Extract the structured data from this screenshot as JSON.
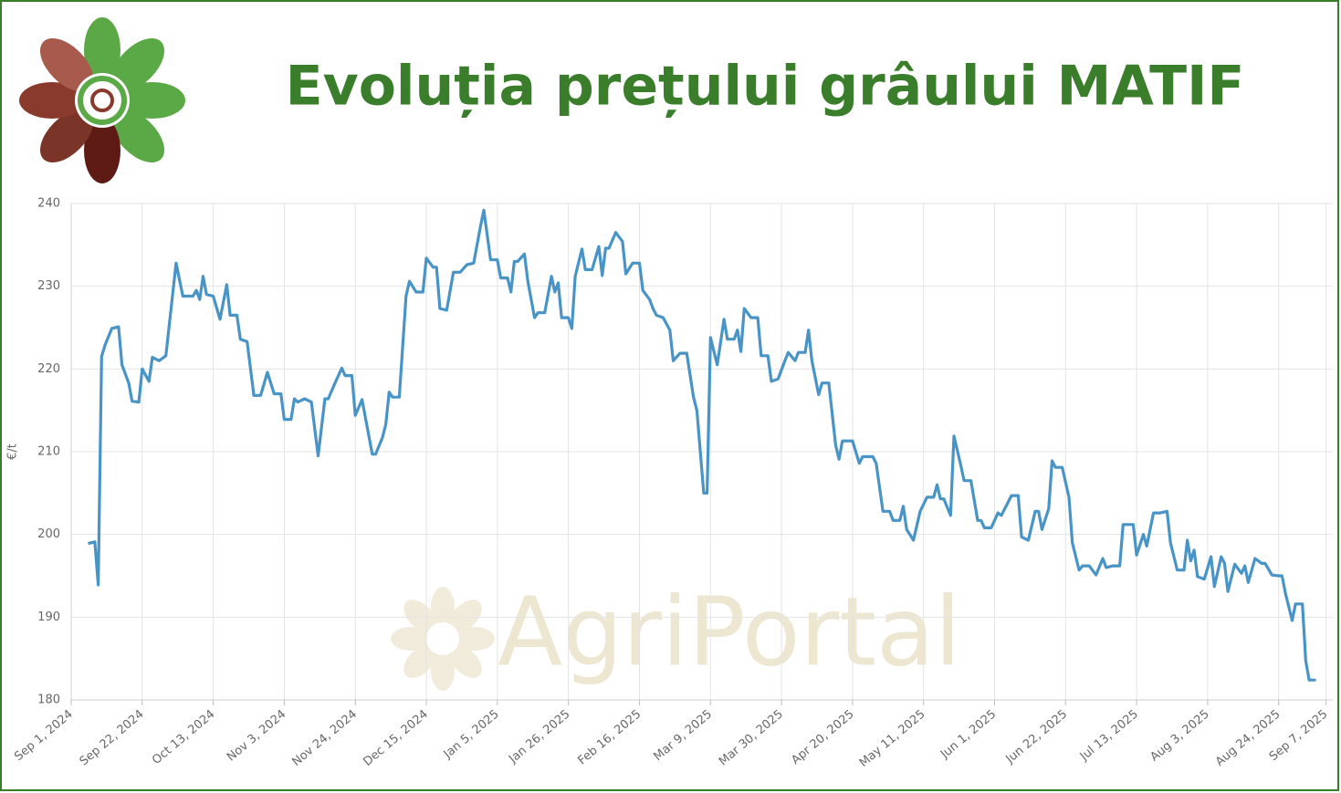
{
  "chart_data": {
    "type": "line",
    "title": "Evoluția prețului grâului MATIF",
    "watermark": "AgriPortal",
    "y_label": "€/t",
    "ylim": [
      180,
      240
    ],
    "yticks": [
      180,
      190,
      200,
      210,
      220,
      230,
      240
    ],
    "xlim": [
      "2024-09-01",
      "2025-09-09"
    ],
    "xticks": [
      {
        "value": "2024-09-01",
        "label": "Sep 1, 2024"
      },
      {
        "value": "2024-09-22",
        "label": "Sep 22, 2024"
      },
      {
        "value": "2024-10-13",
        "label": "Oct 13, 2024"
      },
      {
        "value": "2024-11-03",
        "label": "Nov 3, 2024"
      },
      {
        "value": "2024-11-24",
        "label": "Nov 24, 2024"
      },
      {
        "value": "2024-12-15",
        "label": "Dec 15, 2024"
      },
      {
        "value": "2025-01-05",
        "label": "Jan 5, 2025"
      },
      {
        "value": "2025-01-26",
        "label": "Jan 26, 2025"
      },
      {
        "value": "2025-02-16",
        "label": "Feb 16, 2025"
      },
      {
        "value": "2025-03-09",
        "label": "Mar 9, 2025"
      },
      {
        "value": "2025-03-30",
        "label": "Mar 30, 2025"
      },
      {
        "value": "2025-04-20",
        "label": "Apr 20, 2025"
      },
      {
        "value": "2025-05-11",
        "label": "May 11, 2025"
      },
      {
        "value": "2025-06-01",
        "label": "Jun 1, 2025"
      },
      {
        "value": "2025-06-22",
        "label": "Jun 22, 2025"
      },
      {
        "value": "2025-07-13",
        "label": "Jul 13, 2025"
      },
      {
        "value": "2025-08-03",
        "label": "Aug 3, 2025"
      },
      {
        "value": "2025-08-24",
        "label": "Aug 24, 2025"
      },
      {
        "value": "2025-09-07",
        "label": "Sep 7, 2025"
      }
    ],
    "grid": true,
    "color": "#4894c6",
    "x": [
      "2024-09-06",
      "2024-09-08",
      "2024-09-09",
      "2024-09-10",
      "2024-09-11",
      "2024-09-13",
      "2024-09-15",
      "2024-09-16",
      "2024-09-18",
      "2024-09-19",
      "2024-09-21",
      "2024-09-22",
      "2024-09-24",
      "2024-09-25",
      "2024-09-27",
      "2024-09-29",
      "2024-10-02",
      "2024-10-04",
      "2024-10-07",
      "2024-10-08",
      "2024-10-09",
      "2024-10-10",
      "2024-10-11",
      "2024-10-13",
      "2024-10-15",
      "2024-10-17",
      "2024-10-18",
      "2024-10-20",
      "2024-10-21",
      "2024-10-23",
      "2024-10-25",
      "2024-10-27",
      "2024-10-29",
      "2024-10-31",
      "2024-11-02",
      "2024-11-03",
      "2024-11-05",
      "2024-11-06",
      "2024-11-07",
      "2024-11-09",
      "2024-11-11",
      "2024-11-13",
      "2024-11-15",
      "2024-11-16",
      "2024-11-18",
      "2024-11-20",
      "2024-11-21",
      "2024-11-23",
      "2024-11-24",
      "2024-11-26",
      "2024-11-29",
      "2024-11-30",
      "2024-12-02",
      "2024-12-03",
      "2024-12-04",
      "2024-12-05",
      "2024-12-07",
      "2024-12-09",
      "2024-12-10",
      "2024-12-12",
      "2024-12-14",
      "2024-12-15",
      "2024-12-17",
      "2024-12-18",
      "2024-12-19",
      "2024-12-21",
      "2024-12-23",
      "2024-12-25",
      "2024-12-27",
      "2024-12-29",
      "2024-12-31",
      "2025-01-01",
      "2025-01-03",
      "2025-01-05",
      "2025-01-06",
      "2025-01-08",
      "2025-01-09",
      "2025-01-10",
      "2025-01-11",
      "2025-01-13",
      "2025-01-14",
      "2025-01-16",
      "2025-01-17",
      "2025-01-19",
      "2025-01-21",
      "2025-01-22",
      "2025-01-23",
      "2025-01-24",
      "2025-01-26",
      "2025-01-27",
      "2025-01-28",
      "2025-01-30",
      "2025-01-31",
      "2025-02-02",
      "2025-02-04",
      "2025-02-05",
      "2025-02-06",
      "2025-02-07",
      "2025-02-09",
      "2025-02-11",
      "2025-02-12",
      "2025-02-14",
      "2025-02-16",
      "2025-02-17",
      "2025-02-19",
      "2025-02-20",
      "2025-02-21",
      "2025-02-23",
      "2025-02-25",
      "2025-02-26",
      "2025-02-28",
      "2025-03-02",
      "2025-03-04",
      "2025-03-05",
      "2025-03-07",
      "2025-03-08",
      "2025-03-09",
      "2025-03-11",
      "2025-03-13",
      "2025-03-14",
      "2025-03-16",
      "2025-03-17",
      "2025-03-18",
      "2025-03-19",
      "2025-03-21",
      "2025-03-23",
      "2025-03-24",
      "2025-03-26",
      "2025-03-27",
      "2025-03-29",
      "2025-03-31",
      "2025-04-01",
      "2025-04-03",
      "2025-04-04",
      "2025-04-06",
      "2025-04-07",
      "2025-04-08",
      "2025-04-10",
      "2025-04-11",
      "2025-04-13",
      "2025-04-15",
      "2025-04-16",
      "2025-04-17",
      "2025-04-20",
      "2025-04-22",
      "2025-04-23",
      "2025-04-26",
      "2025-04-27",
      "2025-04-29",
      "2025-05-01",
      "2025-05-02",
      "2025-05-04",
      "2025-05-05",
      "2025-05-06",
      "2025-05-08",
      "2025-05-10",
      "2025-05-12",
      "2025-05-14",
      "2025-05-15",
      "2025-05-16",
      "2025-05-17",
      "2025-05-19",
      "2025-05-20",
      "2025-05-22",
      "2025-05-23",
      "2025-05-25",
      "2025-05-27",
      "2025-05-28",
      "2025-05-29",
      "2025-05-31",
      "2025-06-02",
      "2025-06-03",
      "2025-06-04",
      "2025-06-06",
      "2025-06-08",
      "2025-06-09",
      "2025-06-11",
      "2025-06-13",
      "2025-06-14",
      "2025-06-15",
      "2025-06-17",
      "2025-06-18",
      "2025-06-19",
      "2025-06-21",
      "2025-06-23",
      "2025-06-24",
      "2025-06-26",
      "2025-06-27",
      "2025-06-29",
      "2025-07-01",
      "2025-07-03",
      "2025-07-04",
      "2025-07-06",
      "2025-07-08",
      "2025-07-09",
      "2025-07-12",
      "2025-07-13",
      "2025-07-15",
      "2025-07-16",
      "2025-07-18",
      "2025-07-20",
      "2025-07-22",
      "2025-07-23",
      "2025-07-25",
      "2025-07-27",
      "2025-07-28",
      "2025-07-29",
      "2025-07-30",
      "2025-07-31",
      "2025-08-02",
      "2025-08-04",
      "2025-08-05",
      "2025-08-07",
      "2025-08-08",
      "2025-08-09",
      "2025-08-11",
      "2025-08-13",
      "2025-08-14",
      "2025-08-15",
      "2025-08-17",
      "2025-08-19",
      "2025-08-20",
      "2025-08-22",
      "2025-08-24",
      "2025-08-25",
      "2025-08-26",
      "2025-08-28",
      "2025-08-29",
      "2025-08-31",
      "2025-09-01",
      "2025-09-02",
      "2025-09-04"
    ],
    "values": [
      198.9,
      199.1,
      193.9,
      221.5,
      222.9,
      224.9,
      225.1,
      220.5,
      218.3,
      216.1,
      216,
      220,
      218.5,
      221.4,
      221,
      221.6,
      232.8,
      228.8,
      228.8,
      229.5,
      228.4,
      231.2,
      229,
      228.8,
      226,
      230.2,
      226.5,
      226.5,
      223.6,
      223.3,
      216.8,
      216.8,
      219.6,
      217,
      217,
      213.9,
      213.9,
      216.4,
      216,
      216.4,
      216,
      209.5,
      216.4,
      216.4,
      218.3,
      220.1,
      219.2,
      219.2,
      214.4,
      216.3,
      209.7,
      209.7,
      211.7,
      213.3,
      217.2,
      216.6,
      216.6,
      228.8,
      230.6,
      229.3,
      229.3,
      233.4,
      232.3,
      232.3,
      227.3,
      227.1,
      231.7,
      231.7,
      232.6,
      232.8,
      237.2,
      239.2,
      233.2,
      233.2,
      231,
      231,
      229.3,
      233,
      233,
      233.9,
      230.6,
      226.2,
      226.8,
      226.8,
      231.2,
      229.3,
      230.4,
      226.2,
      226.2,
      224.9,
      231.2,
      234.5,
      232,
      232,
      234.8,
      231.3,
      234.6,
      234.6,
      236.5,
      235.4,
      231.5,
      232.8,
      232.8,
      229.5,
      228.4,
      227.3,
      226.5,
      226.2,
      224.7,
      221,
      221.9,
      221.9,
      216.6,
      215,
      205,
      205,
      223.8,
      220.5,
      226,
      223.6,
      223.6,
      224.7,
      222.1,
      227.3,
      226.2,
      226.2,
      221.6,
      221.6,
      218.5,
      218.8,
      221,
      222,
      221,
      222,
      222,
      224.7,
      221,
      216.9,
      218.3,
      218.3,
      210.8,
      209.1,
      211.3,
      211.3,
      208.6,
      209.4,
      209.4,
      208.6,
      202.8,
      202.8,
      201.7,
      201.7,
      203.4,
      200.6,
      199.3,
      202.8,
      204.5,
      204.5,
      206,
      204.3,
      204.3,
      202.3,
      211.9,
      208.4,
      206.5,
      206.5,
      201.7,
      201.7,
      200.8,
      200.8,
      202.6,
      202.3,
      203.1,
      204.7,
      204.7,
      199.7,
      199.3,
      202.8,
      202.8,
      200.6,
      203.1,
      208.9,
      208.1,
      208.1,
      204.5,
      199,
      195.7,
      196.2,
      196.2,
      195.1,
      197.1,
      196,
      196.2,
      196.2,
      201.2,
      201.2,
      197.5,
      200,
      198.6,
      202.6,
      202.6,
      202.8,
      199,
      195.7,
      195.7,
      199.3,
      196.8,
      198.1,
      194.9,
      194.6,
      197.3,
      193.7,
      197.3,
      196.5,
      193.1,
      196.4,
      195.3,
      196.2,
      194.2,
      197.1,
      196.5,
      196.5,
      195.1,
      195,
      195,
      192.9,
      189.6,
      191.6,
      191.6,
      184.7,
      182.4,
      182.4
    ]
  }
}
